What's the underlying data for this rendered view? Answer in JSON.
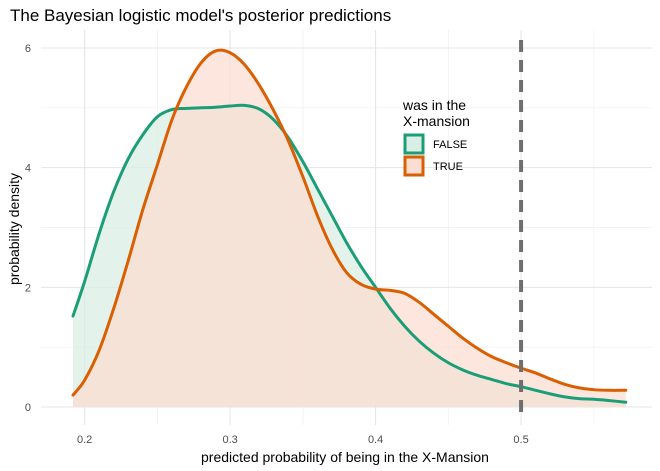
{
  "chart_data": {
    "type": "area",
    "title": "The Bayesian logistic model's posterior predictions",
    "xlabel": "predicted probability of being in the X-Mansion",
    "ylabel": "probability density",
    "xlim": [
      0.17,
      0.59
    ],
    "ylim": [
      -0.3,
      6.3
    ],
    "x_ticks": [
      0.2,
      0.3,
      0.4,
      0.5
    ],
    "x_tick_labels": [
      "0.2",
      "0.3",
      "0.4",
      "0.5"
    ],
    "y_ticks": [
      0,
      2,
      4,
      6
    ],
    "y_tick_labels": [
      "0",
      "2",
      "4",
      "6"
    ],
    "grid": true,
    "legend": {
      "title_lines": [
        "was in the",
        "X-mansion"
      ],
      "placement": "top-right",
      "entries": [
        "FALSE",
        "TRUE"
      ]
    },
    "reference_line": {
      "orientation": "vertical",
      "x": 0.5,
      "style": "dashed",
      "color": "#6e6e6e"
    },
    "series": [
      {
        "name": "FALSE",
        "line_color": "#1b9e77",
        "fill_color": "#d9efe6",
        "x": [
          0.192,
          0.2,
          0.21,
          0.22,
          0.23,
          0.24,
          0.25,
          0.26,
          0.27,
          0.28,
          0.29,
          0.3,
          0.31,
          0.32,
          0.33,
          0.34,
          0.35,
          0.36,
          0.37,
          0.38,
          0.39,
          0.4,
          0.41,
          0.42,
          0.43,
          0.44,
          0.45,
          0.46,
          0.47,
          0.48,
          0.49,
          0.5,
          0.51,
          0.52,
          0.53,
          0.54,
          0.55,
          0.56,
          0.572
        ],
        "y": [
          1.52,
          2.1,
          2.9,
          3.6,
          4.15,
          4.55,
          4.85,
          4.97,
          4.99,
          5.0,
          5.01,
          5.03,
          5.04,
          4.98,
          4.8,
          4.5,
          4.1,
          3.65,
          3.2,
          2.75,
          2.35,
          2.0,
          1.65,
          1.35,
          1.1,
          0.9,
          0.74,
          0.62,
          0.53,
          0.46,
          0.39,
          0.34,
          0.28,
          0.22,
          0.17,
          0.14,
          0.13,
          0.11,
          0.08
        ]
      },
      {
        "name": "TRUE",
        "line_color": "#d95f02",
        "fill_color": "#fcddd2",
        "x": [
          0.192,
          0.2,
          0.21,
          0.22,
          0.23,
          0.24,
          0.25,
          0.26,
          0.27,
          0.28,
          0.29,
          0.3,
          0.31,
          0.32,
          0.33,
          0.34,
          0.35,
          0.36,
          0.37,
          0.38,
          0.39,
          0.4,
          0.41,
          0.42,
          0.43,
          0.44,
          0.45,
          0.46,
          0.47,
          0.48,
          0.49,
          0.5,
          0.51,
          0.52,
          0.53,
          0.54,
          0.55,
          0.56,
          0.572
        ],
        "y": [
          0.2,
          0.45,
          0.95,
          1.65,
          2.45,
          3.3,
          4.05,
          4.8,
          5.35,
          5.75,
          5.95,
          5.92,
          5.72,
          5.38,
          4.95,
          4.45,
          3.85,
          3.2,
          2.65,
          2.25,
          2.05,
          1.97,
          1.95,
          1.9,
          1.75,
          1.55,
          1.35,
          1.15,
          0.98,
          0.84,
          0.74,
          0.65,
          0.57,
          0.47,
          0.38,
          0.32,
          0.29,
          0.28,
          0.28
        ]
      }
    ]
  }
}
